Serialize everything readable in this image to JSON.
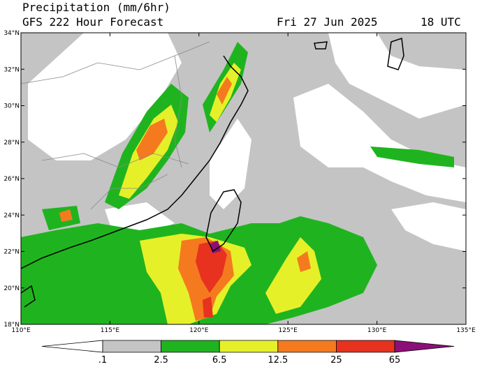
{
  "header": {
    "title": "Precipitation (mm/6hr)",
    "subtitle": "GFS 222 Hour Forecast",
    "date": "Fri 27 Jun 2025",
    "time": "18 UTC"
  },
  "map": {
    "lat_labels": [
      "34°N",
      "32°N",
      "30°N",
      "28°N",
      "26°N",
      "24°N",
      "22°N",
      "20°N",
      "18°N"
    ],
    "lon_labels": [
      "110°E",
      "115°E",
      "120°E",
      "125°E",
      "130°E",
      "135°E"
    ]
  },
  "colorbar": {
    "labels": [
      ".1",
      "2.5",
      "6.5",
      "12.5",
      "25",
      "65"
    ],
    "colors": [
      "#ffffff",
      "#c4c4c4",
      "#1fb41f",
      "#e6f029",
      "#f57a1f",
      "#e6321e",
      "#8c0f78"
    ]
  }
}
